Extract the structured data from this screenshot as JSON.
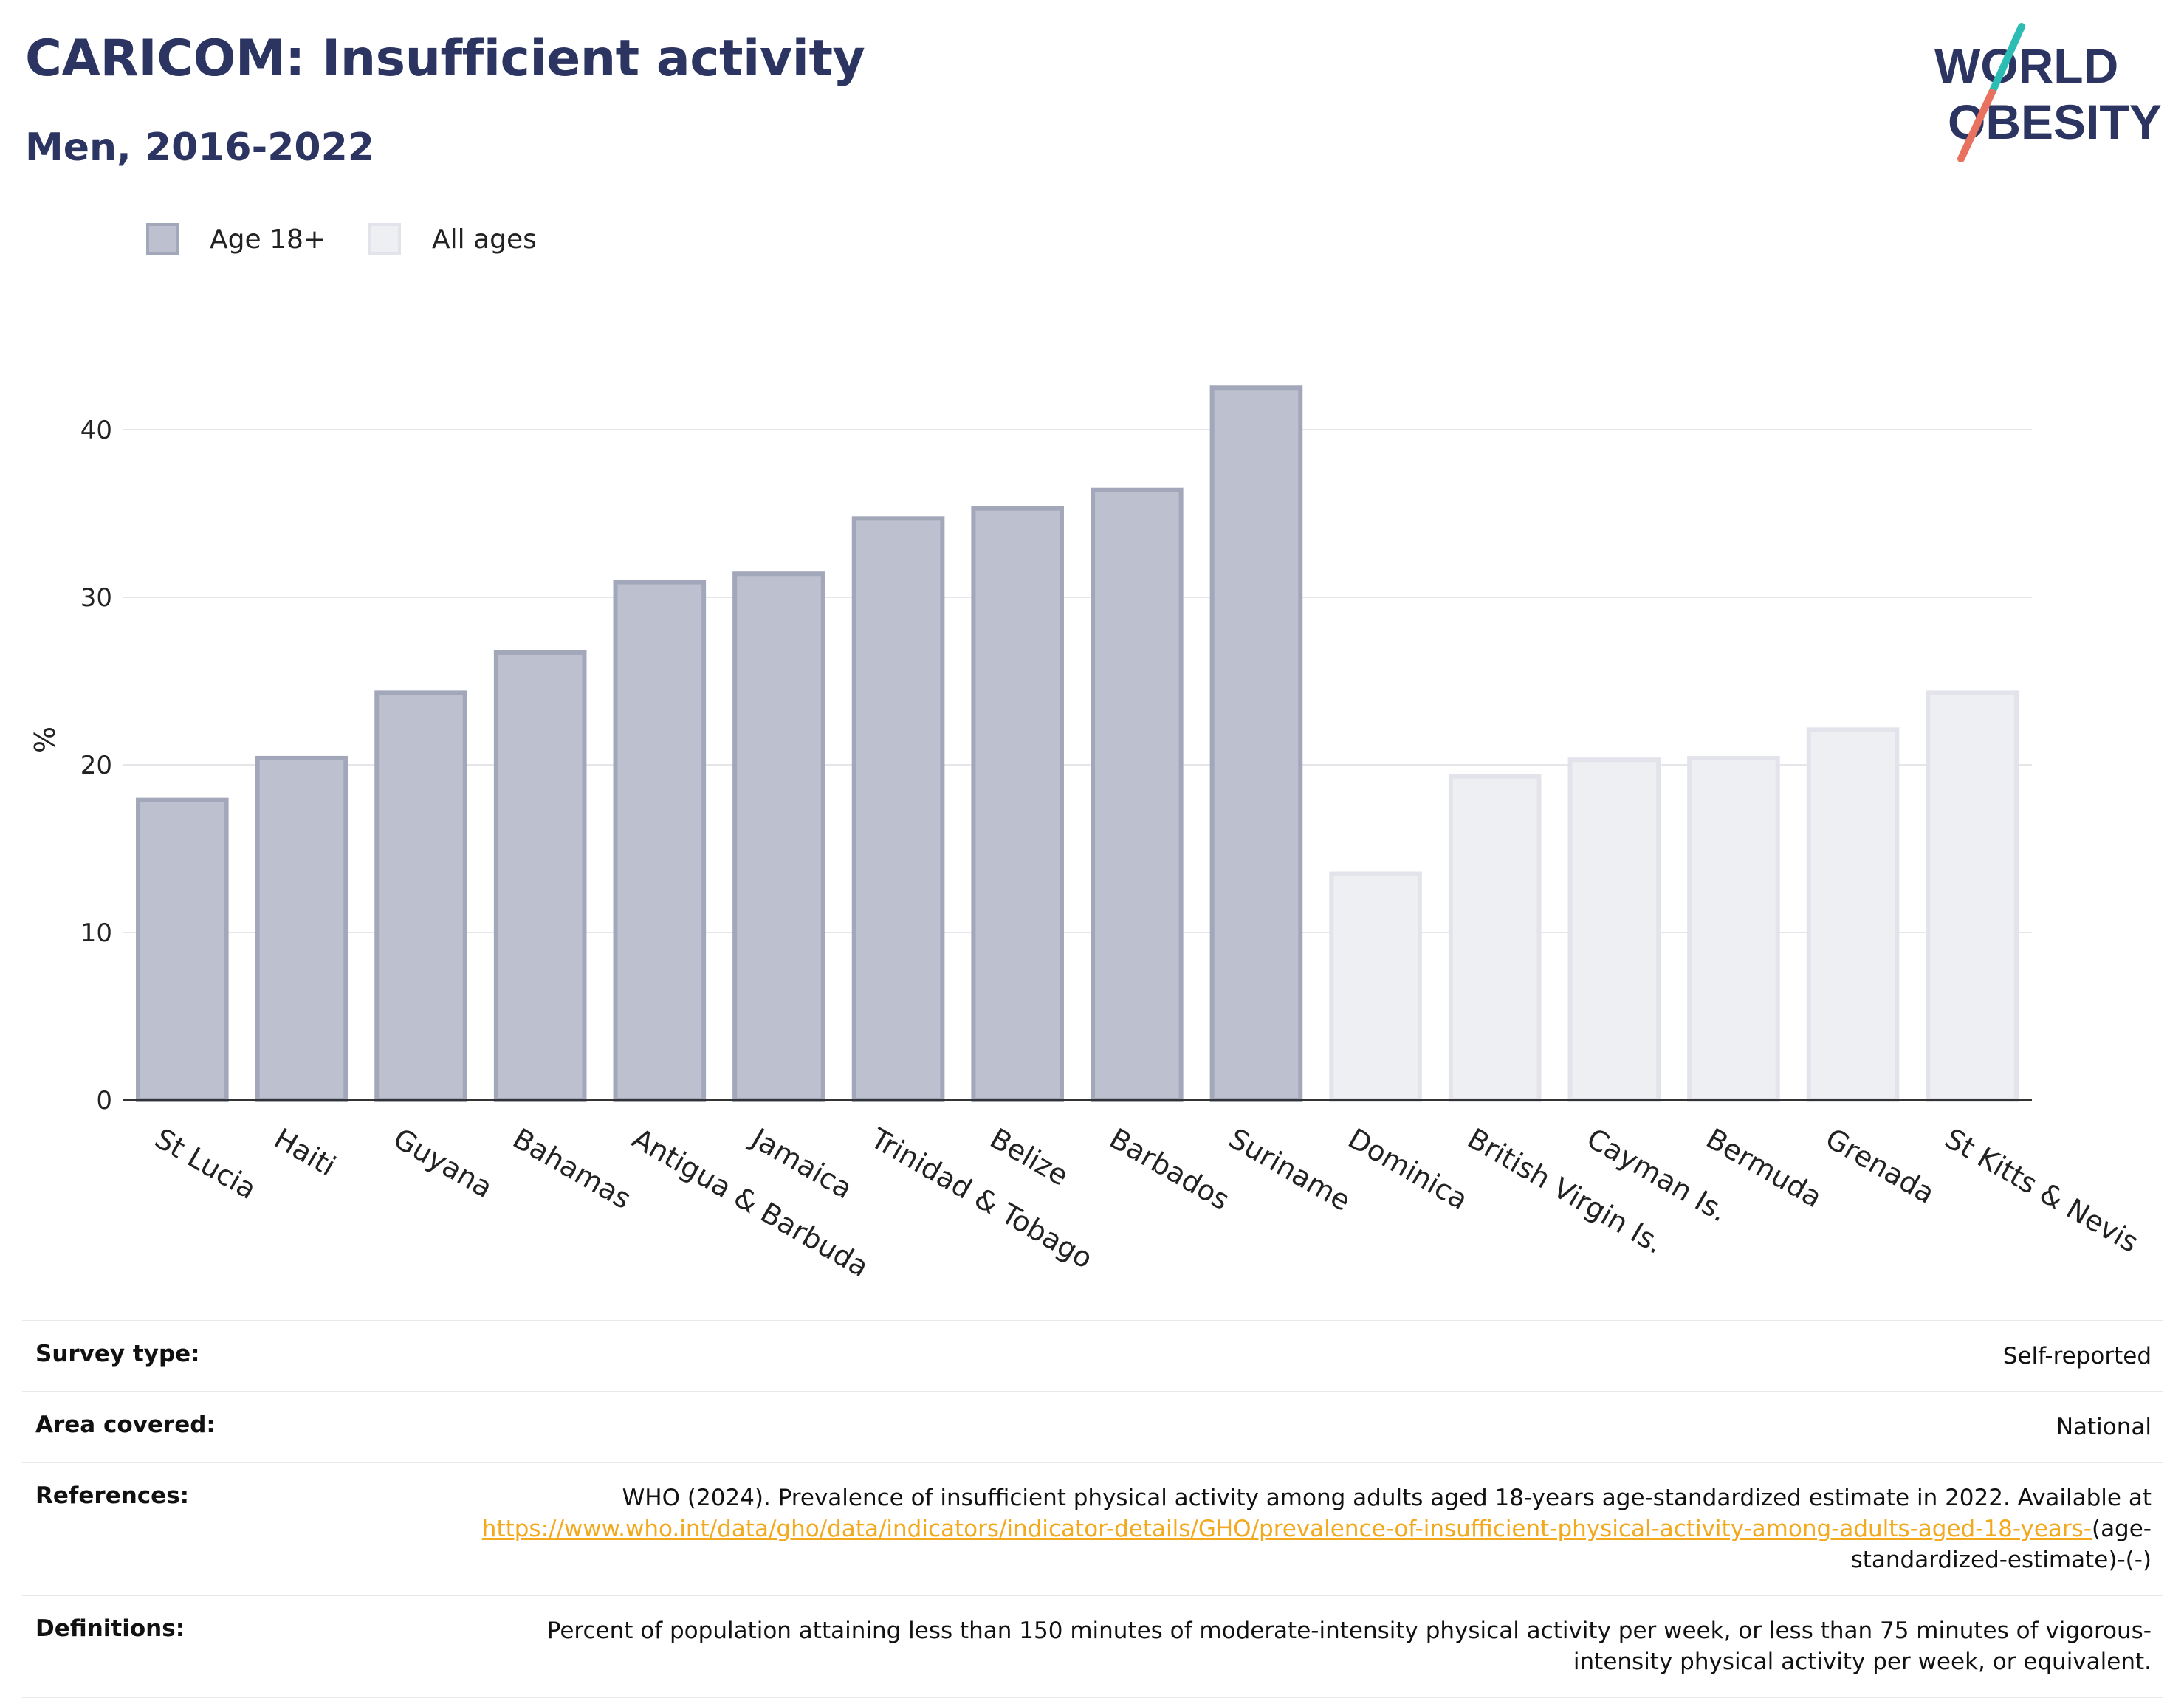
{
  "header": {
    "title": "CARICOM: Insufficient activity",
    "subtitle": "Men, 2016-2022"
  },
  "logo": {
    "line1": "WORLD",
    "line2": "OBESITY",
    "slash_colors": [
      "#2bbcb3",
      "#e8725e"
    ],
    "text_color": "#2c3561"
  },
  "legend": {
    "items": [
      {
        "label": "Age 18+",
        "color": "#bdc0ce"
      },
      {
        "label": "All ages",
        "color": "#eeeff3"
      }
    ]
  },
  "chart_data": {
    "type": "bar",
    "title": "CARICOM: Insufficient activity",
    "subtitle": "Men, 2016-2022",
    "ylabel": "%",
    "xlabel": "",
    "ylim": [
      0,
      45
    ],
    "yticks": [
      0,
      10,
      20,
      30,
      40
    ],
    "grid": true,
    "legend_position": "top-left",
    "categories": [
      "St Lucia",
      "Haiti",
      "Guyana",
      "Bahamas",
      "Antigua & Barbuda",
      "Jamaica",
      "Trinidad & Tobago",
      "Belize",
      "Barbados",
      "Suriname",
      "Dominica",
      "British Virgin Is.",
      "Cayman Is.",
      "Bermuda",
      "Grenada",
      "St Kitts & Nevis"
    ],
    "values": [
      17.9,
      20.4,
      24.3,
      26.7,
      30.9,
      31.4,
      34.7,
      35.3,
      36.4,
      42.5,
      13.5,
      19.3,
      20.3,
      20.4,
      22.1,
      24.3
    ],
    "groups": [
      "Age 18+",
      "Age 18+",
      "Age 18+",
      "Age 18+",
      "Age 18+",
      "Age 18+",
      "Age 18+",
      "Age 18+",
      "Age 18+",
      "Age 18+",
      "All ages",
      "All ages",
      "All ages",
      "All ages",
      "All ages",
      "All ages"
    ],
    "colors": {
      "Age 18+": "#bdc0ce",
      "All ages": "#eeeff3"
    }
  },
  "info": {
    "survey_type": {
      "label": "Survey type:",
      "value": "Self-reported"
    },
    "area_covered": {
      "label": "Area covered:",
      "value": "National"
    },
    "references": {
      "label": "References:",
      "text": "WHO (2024). Prevalence of insufficient physical activity among adults aged 18-years age-standardized estimate in 2022. Available at",
      "link": "https://www.who.int/data/gho/data/indicators/indicator-details/GHO/prevalence-of-insufficient-physical-activity-among-adults-aged-18-years-",
      "suffix": "(age-standardized-estimate)-(-)"
    },
    "definitions": {
      "label": "Definitions:",
      "value": "Percent of population attaining less than 150 minutes of moderate-intensity physical activity per week, or less than 75 minutes of vigorous-intensity physical activity per week, or equivalent."
    }
  }
}
